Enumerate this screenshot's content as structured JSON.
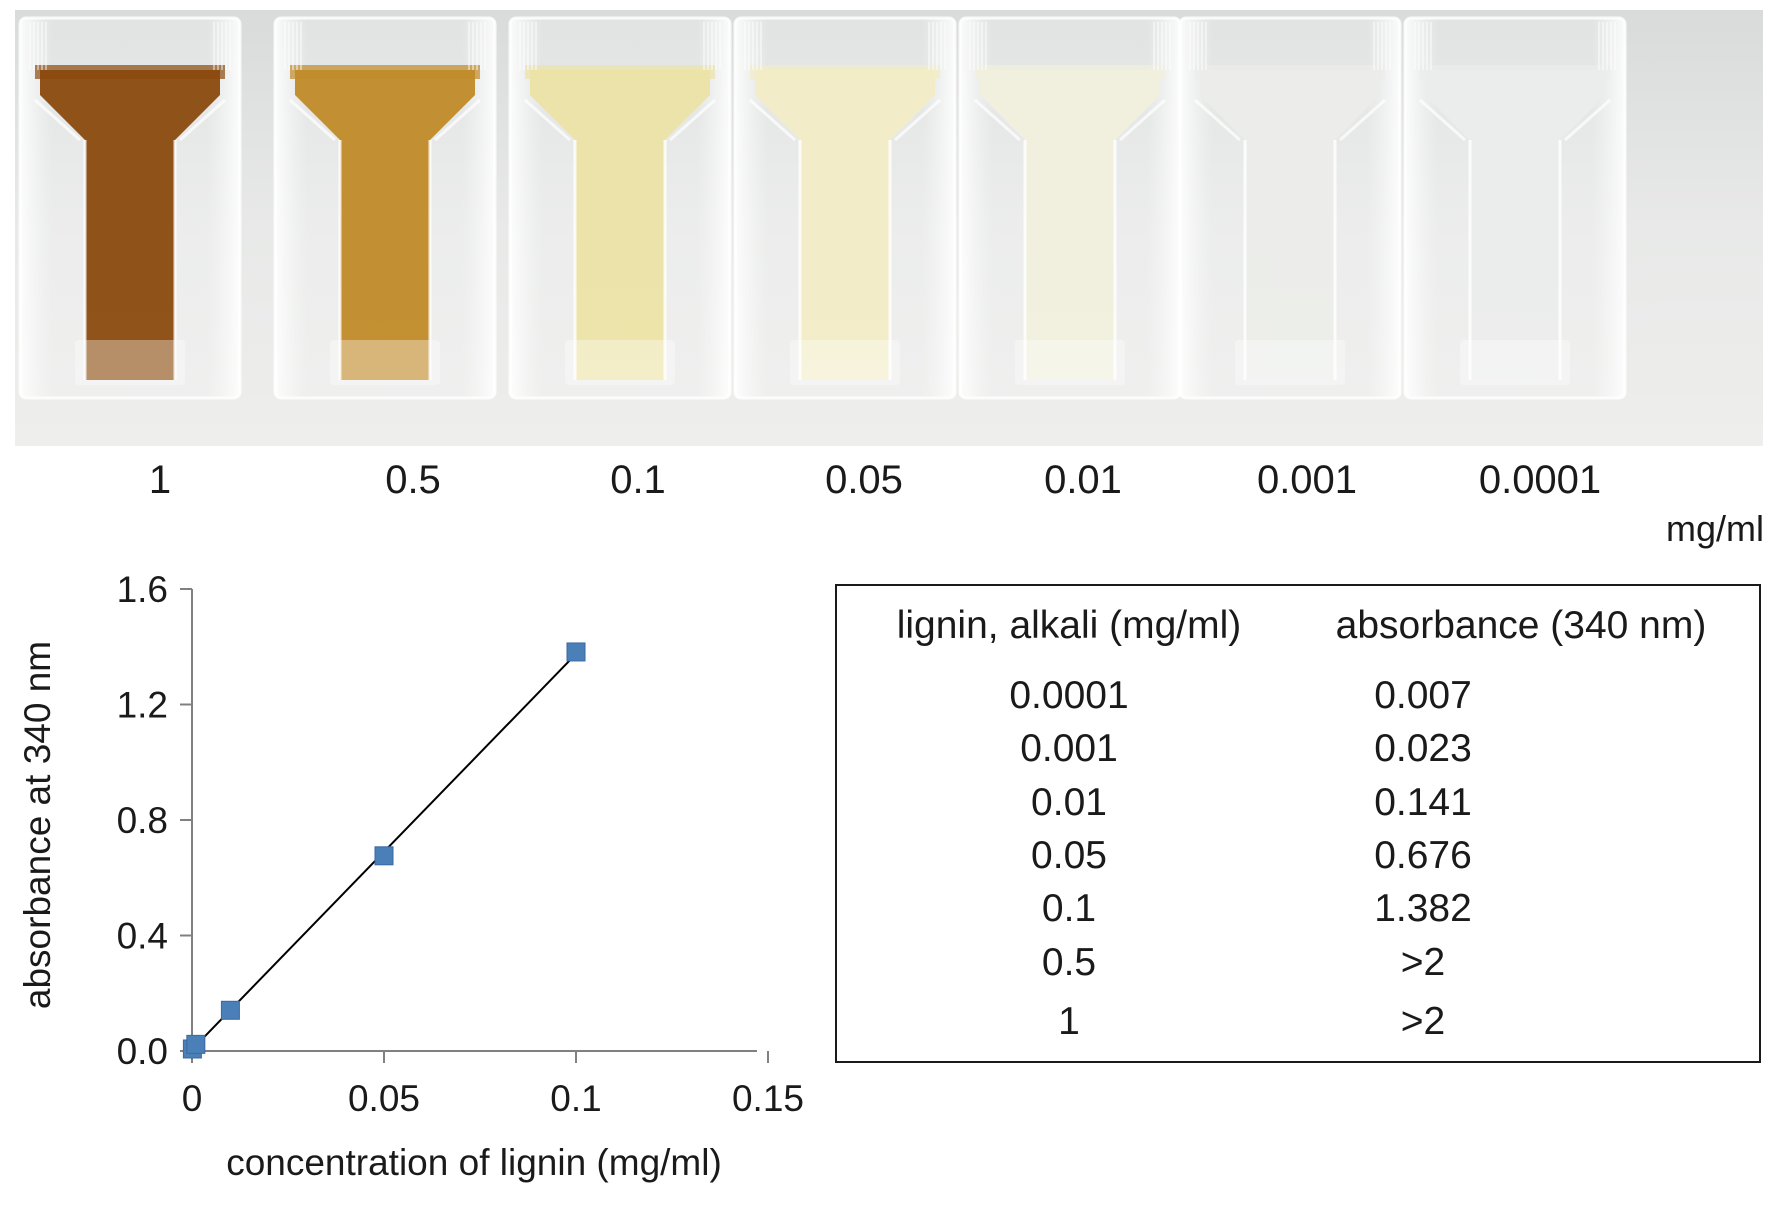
{
  "colors": {
    "marker": "#4a7fb8",
    "fit_line": "#000000"
  },
  "photo": {
    "samples": [
      {
        "concentration": "1",
        "tint": "#8a4a0e"
      },
      {
        "concentration": "0.5",
        "tint": "#c08a28"
      },
      {
        "concentration": "0.1",
        "tint": "#ece3a6"
      },
      {
        "concentration": "0.05",
        "tint": "#f2ecc6"
      },
      {
        "concentration": "0.01",
        "tint": "#f1efdd"
      },
      {
        "concentration": "0.001",
        "tint": "#ecedea"
      },
      {
        "concentration": "0.0001",
        "tint": "#ebecec"
      }
    ],
    "unit": "mg/ml"
  },
  "chart_data": {
    "type": "scatter",
    "xlabel": "concentration of lignin (mg/ml)",
    "ylabel": "absorbance at 340 nm",
    "xlim": [
      0,
      0.15
    ],
    "ylim": [
      0,
      1.6
    ],
    "x_ticks": [
      "0",
      "0.05",
      "0.1",
      "0.15"
    ],
    "y_ticks": [
      "0.0",
      "0.4",
      "0.8",
      "1.2",
      "1.6"
    ],
    "grid": false,
    "legend": "none",
    "marker": "square",
    "series": [
      {
        "x": [
          0.0001,
          0.001,
          0.01,
          0.05,
          0.1
        ],
        "y": [
          0.007,
          0.023,
          0.141,
          0.676,
          1.382
        ]
      }
    ],
    "trendline": {
      "type": "linear",
      "x": [
        0,
        0.1
      ],
      "y": [
        0.005,
        1.375
      ]
    }
  },
  "table": {
    "headers": [
      "lignin, alkali (mg/ml)",
      "absorbance (340 nm)"
    ],
    "rows": [
      [
        "0.0001",
        "0.007"
      ],
      [
        "0.001",
        "0.023"
      ],
      [
        "0.01",
        "0.141"
      ],
      [
        "0.05",
        "0.676"
      ],
      [
        "0.1",
        "1.382"
      ],
      [
        "0.5",
        ">2"
      ],
      [
        "1",
        ">2"
      ]
    ]
  }
}
